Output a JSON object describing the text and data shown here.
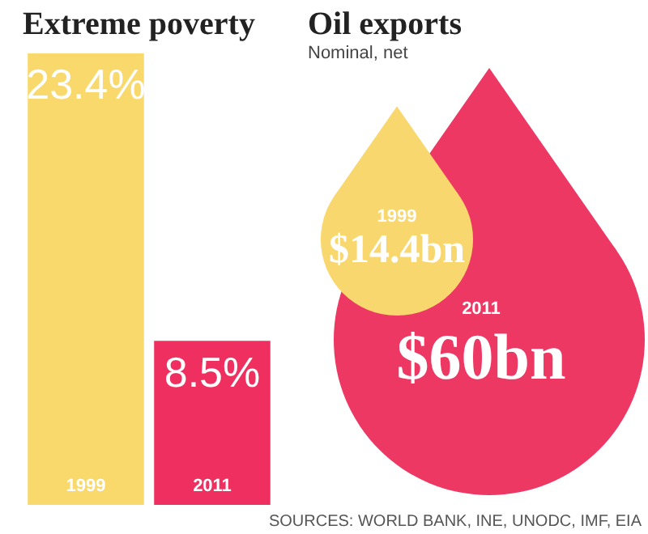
{
  "chart_data": [
    {
      "type": "bar",
      "title": "Extreme poverty",
      "categories": [
        "1999",
        "2011"
      ],
      "values": [
        23.4,
        8.5
      ],
      "colors": [
        "#f9d96c",
        "#ef2f5f"
      ],
      "value_labels": [
        "23.4%",
        "8.5%"
      ]
    },
    {
      "type": "other",
      "title": "Oil exports",
      "subtitle": "Nominal, net",
      "categories": [
        "1999",
        "2011"
      ],
      "values": [
        14.4,
        60
      ],
      "colors": [
        "#f8d86e",
        "#ee3864"
      ],
      "value_labels": [
        "$14.4bn",
        "$60bn"
      ],
      "annotations": [
        "SOURCES: WORLD BANK, INE, UNODC, IMF, EIA"
      ]
    }
  ]
}
